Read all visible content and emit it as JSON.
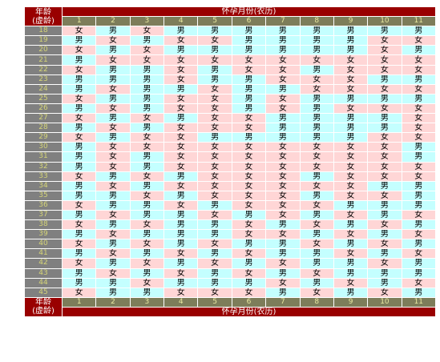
{
  "header": {
    "corner_label_1": "年龄",
    "corner_label_2": "(虚龄)",
    "title": "怀孕月份(农历)",
    "months": [
      "1",
      "2",
      "3",
      "4",
      "5",
      "6",
      "7",
      "8",
      "9",
      "10",
      "11"
    ]
  },
  "rows": [
    {
      "age": "18",
      "cells": [
        "女",
        "男",
        "女",
        "男",
        "男",
        "男",
        "男",
        "男",
        "男",
        "男",
        "男"
      ]
    },
    {
      "age": "19",
      "cells": [
        "男",
        "女",
        "男",
        "女",
        "女",
        "男",
        "男",
        "男",
        "男",
        "女",
        "女"
      ]
    },
    {
      "age": "20",
      "cells": [
        "女",
        "男",
        "女",
        "男",
        "男",
        "男",
        "男",
        "男",
        "男",
        "女",
        "男"
      ]
    },
    {
      "age": "21",
      "cells": [
        "男",
        "女",
        "女",
        "女",
        "女",
        "女",
        "女",
        "女",
        "女",
        "女",
        "女"
      ]
    },
    {
      "age": "22",
      "cells": [
        "女",
        "男",
        "男",
        "女",
        "男",
        "女",
        "女",
        "男",
        "女",
        "女",
        "女"
      ]
    },
    {
      "age": "23",
      "cells": [
        "男",
        "男",
        "男",
        "女",
        "男",
        "男",
        "女",
        "女",
        "女",
        "男",
        "男"
      ]
    },
    {
      "age": "24",
      "cells": [
        "男",
        "女",
        "男",
        "男",
        "女",
        "男",
        "男",
        "女",
        "女",
        "女",
        "女"
      ]
    },
    {
      "age": "25",
      "cells": [
        "女",
        "男",
        "男",
        "女",
        "女",
        "男",
        "女",
        "男",
        "男",
        "男",
        "男"
      ]
    },
    {
      "age": "26",
      "cells": [
        "男",
        "女",
        "男",
        "女",
        "女",
        "男",
        "女",
        "男",
        "女",
        "女",
        "女"
      ]
    },
    {
      "age": "27",
      "cells": [
        "女",
        "男",
        "女",
        "男",
        "女",
        "女",
        "男",
        "男",
        "男",
        "男",
        "女"
      ]
    },
    {
      "age": "28",
      "cells": [
        "男",
        "女",
        "男",
        "女",
        "女",
        "女",
        "男",
        "男",
        "男",
        "男",
        "女"
      ]
    },
    {
      "age": "29",
      "cells": [
        "女",
        "男",
        "女",
        "女",
        "男",
        "男",
        "男",
        "男",
        "男",
        "女",
        "女"
      ]
    },
    {
      "age": "30",
      "cells": [
        "男",
        "女",
        "女",
        "女",
        "女",
        "女",
        "女",
        "女",
        "女",
        "女",
        "男"
      ]
    },
    {
      "age": "31",
      "cells": [
        "男",
        "女",
        "男",
        "女",
        "女",
        "女",
        "女",
        "女",
        "女",
        "女",
        "男"
      ]
    },
    {
      "age": "32",
      "cells": [
        "男",
        "女",
        "男",
        "女",
        "女",
        "女",
        "女",
        "女",
        "女",
        "女",
        "女"
      ]
    },
    {
      "age": "33",
      "cells": [
        "女",
        "男",
        "女",
        "男",
        "女",
        "女",
        "女",
        "男",
        "女",
        "女",
        "女"
      ]
    },
    {
      "age": "34",
      "cells": [
        "男",
        "女",
        "男",
        "女",
        "女",
        "女",
        "女",
        "女",
        "女",
        "男",
        "男"
      ]
    },
    {
      "age": "35",
      "cells": [
        "男",
        "男",
        "女",
        "男",
        "女",
        "女",
        "女",
        "男",
        "女",
        "女",
        "男"
      ]
    },
    {
      "age": "36",
      "cells": [
        "女",
        "男",
        "男",
        "女",
        "男",
        "女",
        "女",
        "女",
        "男",
        "男",
        "男"
      ]
    },
    {
      "age": "37",
      "cells": [
        "男",
        "女",
        "男",
        "男",
        "女",
        "男",
        "女",
        "男",
        "女",
        "男",
        "女"
      ]
    },
    {
      "age": "38",
      "cells": [
        "女",
        "男",
        "女",
        "男",
        "男",
        "女",
        "男",
        "女",
        "男",
        "女",
        "男"
      ]
    },
    {
      "age": "39",
      "cells": [
        "男",
        "女",
        "男",
        "男",
        "男",
        "女",
        "女",
        "男",
        "女",
        "男",
        "女"
      ]
    },
    {
      "age": "40",
      "cells": [
        "女",
        "男",
        "女",
        "男",
        "女",
        "男",
        "男",
        "女",
        "男",
        "女",
        "男"
      ]
    },
    {
      "age": "41",
      "cells": [
        "男",
        "女",
        "男",
        "女",
        "男",
        "女",
        "男",
        "男",
        "女",
        "男",
        "女"
      ]
    },
    {
      "age": "42",
      "cells": [
        "女",
        "男",
        "女",
        "男",
        "女",
        "男",
        "女",
        "男",
        "男",
        "女",
        "男"
      ]
    },
    {
      "age": "43",
      "cells": [
        "男",
        "女",
        "男",
        "女",
        "男",
        "女",
        "男",
        "女",
        "男",
        "男",
        "男"
      ]
    },
    {
      "age": "44",
      "cells": [
        "男",
        "男",
        "女",
        "男",
        "男",
        "男",
        "女",
        "男",
        "女",
        "男",
        "女"
      ]
    },
    {
      "age": "45",
      "cells": [
        "女",
        "男",
        "男",
        "女",
        "女",
        "女",
        "男",
        "女",
        "男",
        "女",
        "男"
      ]
    }
  ],
  "colors": {
    "header_bg": "#990000",
    "month_row_bg": "#7d7d5a",
    "age_bg": "#808080",
    "girl_bg": "#ffd6d6",
    "boy_bg": "#c4ffff"
  }
}
